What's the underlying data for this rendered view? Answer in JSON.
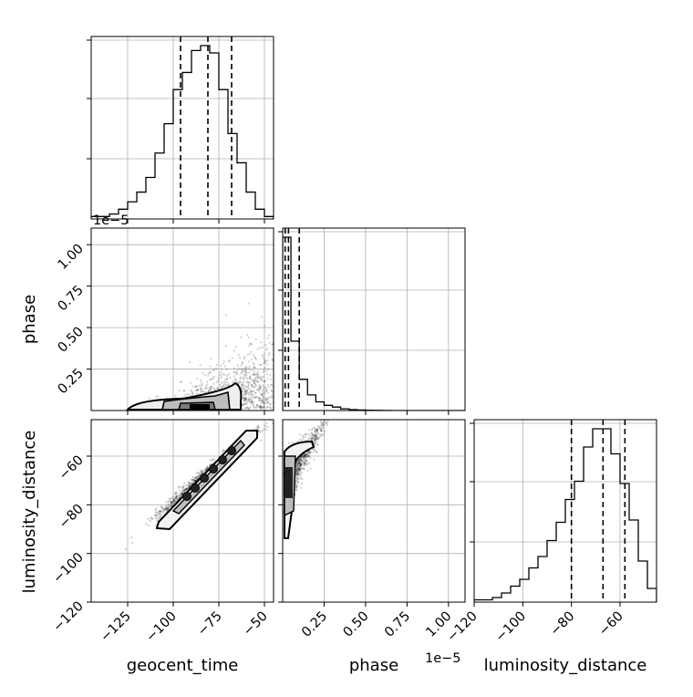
{
  "chart_data": {
    "type": "corner",
    "parameters": [
      "geocent_time",
      "phase",
      "luminosity_distance"
    ],
    "axis_labels": {
      "geocent_time": "geocent_time",
      "phase": "phase",
      "luminosity_distance": "luminosity_distance"
    },
    "ranges": {
      "geocent_time": [
        -145,
        -45
      ],
      "phase": [
        0,
        1.1e-05
      ],
      "luminosity_distance": [
        -120,
        -45
      ]
    },
    "ticks": {
      "geocent_time": {
        "values": [
          -125,
          -100,
          -75,
          -50
        ],
        "labels": [
          "−125",
          "−100",
          "−75",
          "−50"
        ]
      },
      "phase": {
        "values": [
          2.5e-06,
          5e-06,
          7.5e-06,
          1e-05
        ],
        "labels": [
          "0.25",
          "0.50",
          "0.75",
          "1.00"
        ]
      },
      "luminosity_distance": {
        "values": [
          -120,
          -100,
          -80,
          -60
        ],
        "labels": [
          "−120",
          "−100",
          "−80",
          "−60"
        ]
      }
    },
    "offset_text": "1e−5",
    "grid": true,
    "histograms": {
      "geocent_time": {
        "edges_start": -145,
        "bin_width": 5,
        "counts": [
          1,
          1,
          2,
          4,
          7,
          11,
          17,
          27,
          39,
          53,
          60,
          69,
          71,
          68,
          53,
          35,
          23,
          11,
          4,
          1
        ],
        "quantiles": [
          -96,
          -81,
          -68
        ]
      },
      "phase": {
        "edges_start": 0,
        "bin_width": 5e-07,
        "counts": [
          100,
          40,
          18,
          9,
          5,
          3,
          2,
          1,
          0.5,
          0.3,
          0.2,
          0.1,
          0.05,
          0,
          0,
          0,
          0,
          0,
          0,
          0,
          0,
          0
        ],
        "quantiles": [
          1.5e-07,
          3.5e-07,
          1e-06
        ]
      },
      "luminosity_distance": {
        "edges_start": -120,
        "bin_width": 3.75,
        "counts": [
          1,
          1,
          2,
          4,
          7,
          10,
          15,
          20,
          27,
          35,
          45,
          53,
          68,
          76,
          76,
          65,
          52,
          36,
          18,
          6
        ],
        "quantiles": [
          -80,
          -67,
          -58
        ]
      }
    },
    "panels_2d": [
      {
        "x": "geocent_time",
        "y": "phase",
        "cloud_center": [
          -75,
          1.2e-06
        ],
        "contour_levels": 4
      },
      {
        "x": "geocent_time",
        "y": "luminosity_distance",
        "cloud_center": [
          -81,
          -67
        ],
        "correlation": 0.99,
        "contour_levels": 4
      },
      {
        "x": "phase",
        "y": "luminosity_distance",
        "cloud_center": [
          1e-06,
          -60
        ],
        "contour_levels": 4
      }
    ]
  }
}
